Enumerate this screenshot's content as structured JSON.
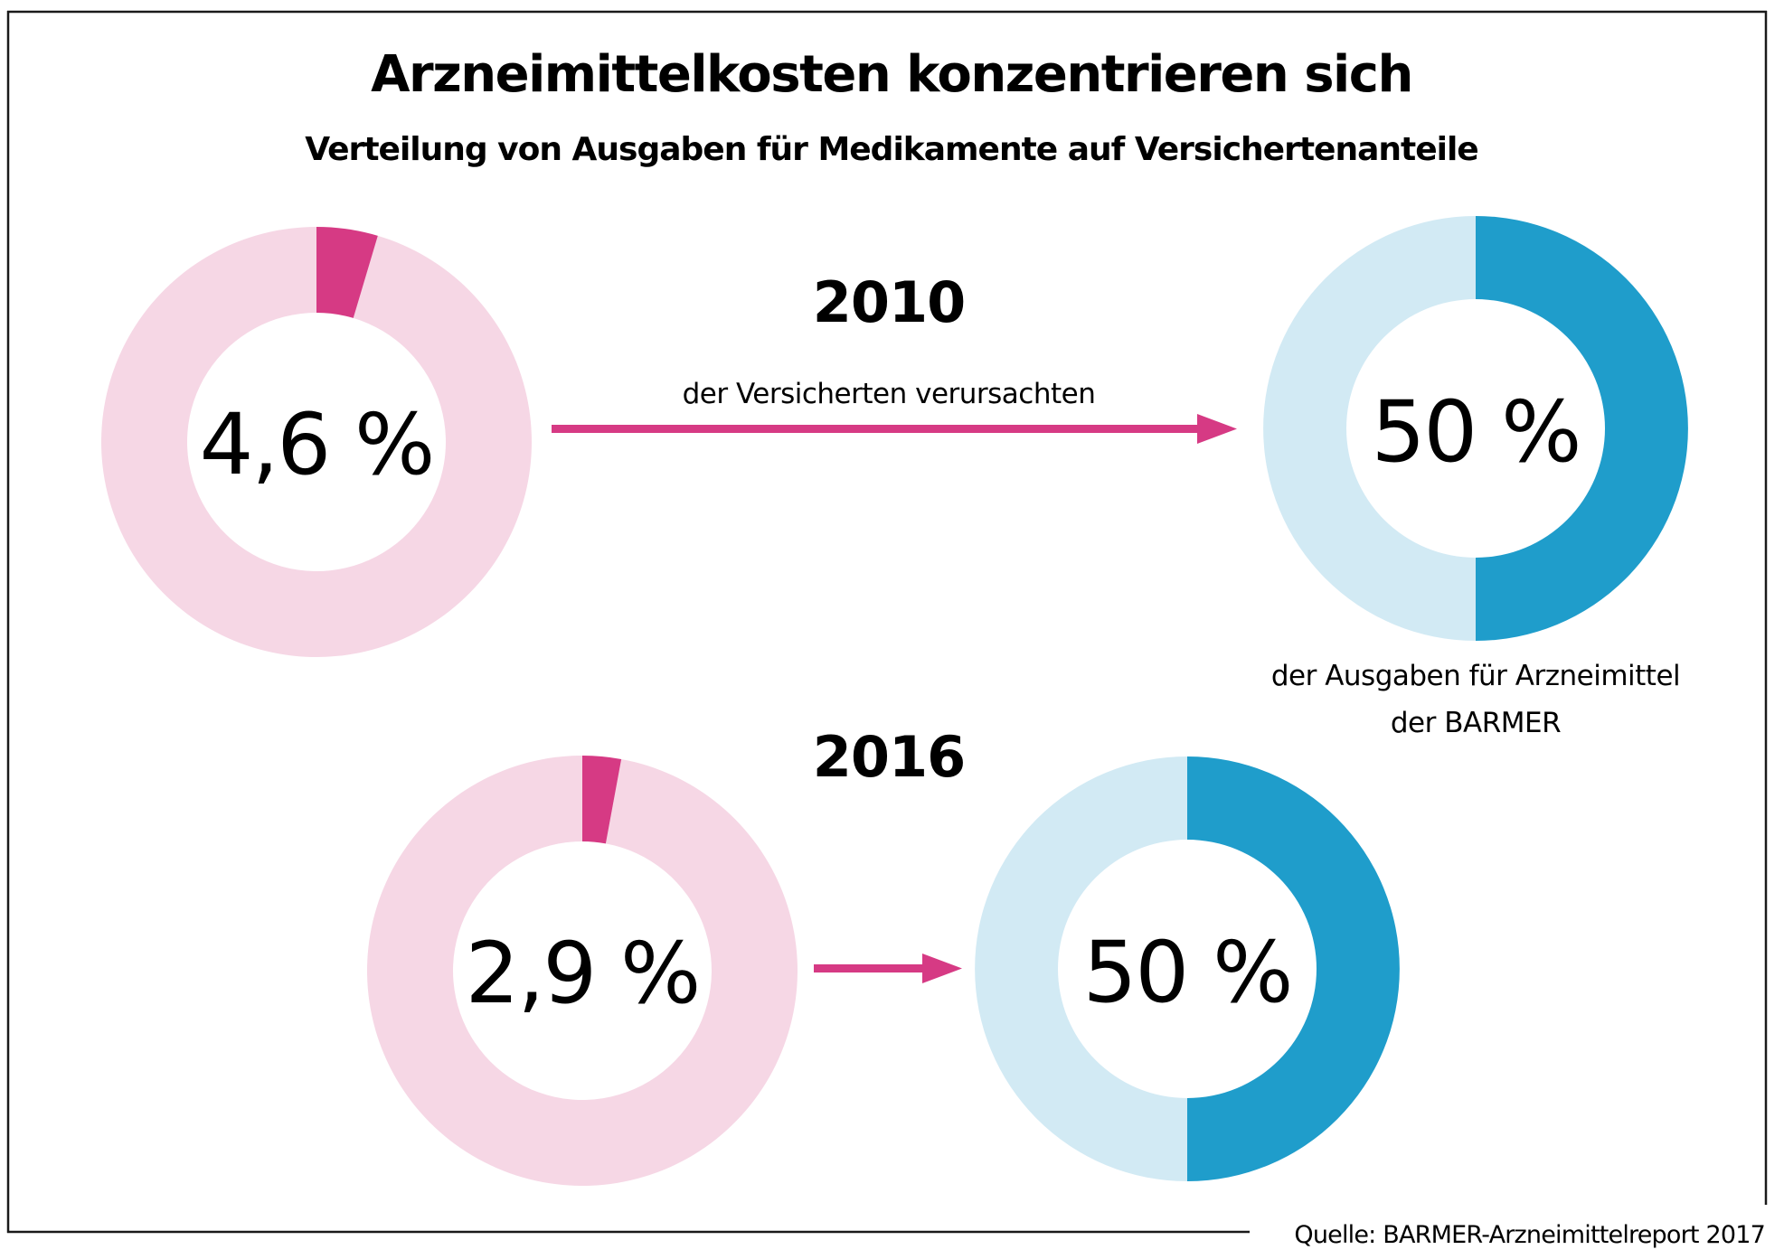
{
  "colors": {
    "insured_highlight": "#D63A84",
    "insured_rest": "#F6D7E5",
    "spending_highlight": "#1F9DCB",
    "spending_rest": "#D2EAF4",
    "arrow": "#D63A84",
    "frame": "#1a1a1a",
    "text": "#000000"
  },
  "chart_data": {
    "type": "pie",
    "variant": "donut",
    "title": "Arzneimittelkosten konzentrieren sich",
    "subtitle": "Verteilung von Ausgaben für Medikamente auf Versichertenanteile",
    "source": "Quelle: BARMER-Arzneimittelreport 2017",
    "annotations": {
      "arrow_label": "der Versicherten verursachten",
      "spending_caption_line1": "der Ausgaben für Arzneimittel",
      "spending_caption_line2": "der BARMER"
    },
    "years": [
      {
        "year": "2010",
        "insured": {
          "label": "4,6 %",
          "value": 4.6,
          "unit": "%"
        },
        "spending": {
          "label": "50 %",
          "value": 50,
          "unit": "%"
        }
      },
      {
        "year": "2016",
        "insured": {
          "label": "2,9 %",
          "value": 2.9,
          "unit": "%"
        },
        "spending": {
          "label": "50 %",
          "value": 50,
          "unit": "%"
        }
      }
    ]
  }
}
